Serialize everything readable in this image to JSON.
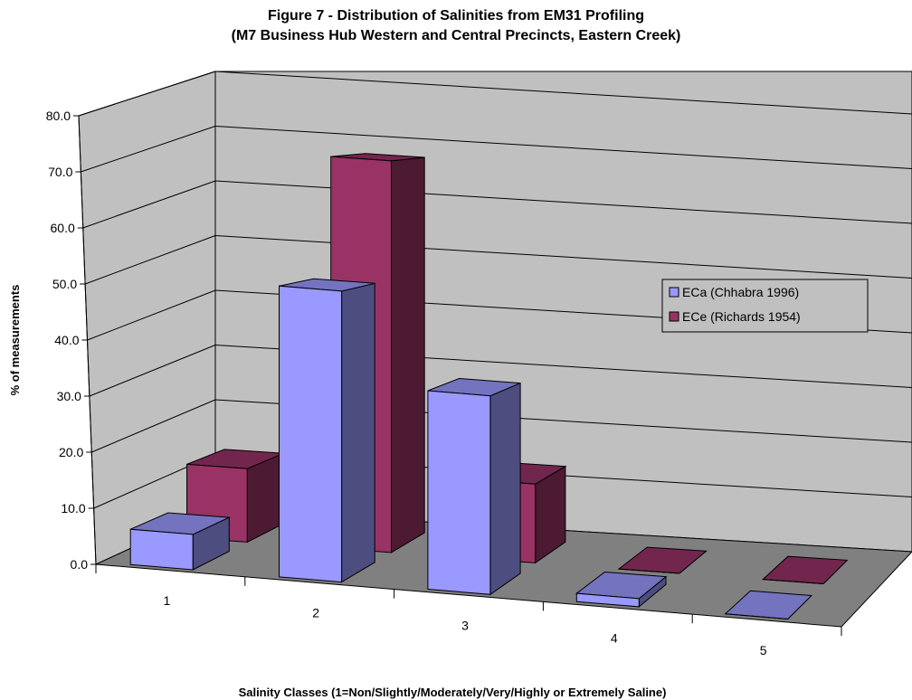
{
  "chart_data": {
    "type": "bar",
    "title_line1": "Figure 7 - Distribution of Salinities from EM31 Profiling",
    "title_line2": "(M7 Business Hub Western and Central Precincts, Eastern Creek)",
    "xlabel": "Salinity Classes (1=Non/Slightly/Moderately/Very/Highly or Extremely Saline)",
    "ylabel": "% of measurements",
    "categories": [
      "1",
      "2",
      "3",
      "4",
      "5"
    ],
    "ylim": [
      0,
      80
    ],
    "yticks": [
      "0.0",
      "10.0",
      "20.0",
      "30.0",
      "40.0",
      "50.0",
      "60.0",
      "70.0",
      "80.0"
    ],
    "series": [
      {
        "name": "ECa (Chhabra 1996)",
        "values": [
          6.5,
          53.5,
          36.5,
          1.5,
          0.0
        ],
        "color": "#9999ff"
      },
      {
        "name": "ECe (Richards 1954)",
        "values": [
          13.5,
          72.0,
          14.5,
          0.0,
          0.0
        ],
        "color": "#993366"
      }
    ],
    "grid": true,
    "legend_position": "right",
    "view": "3d"
  }
}
